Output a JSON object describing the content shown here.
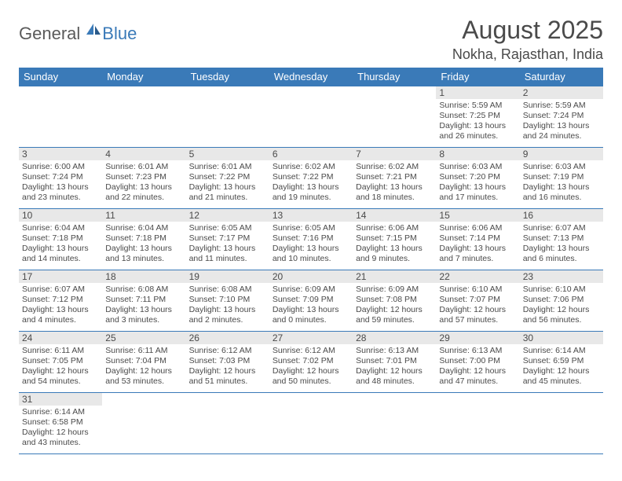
{
  "logo": {
    "general": "General",
    "blue": "Blue"
  },
  "title": "August 2025",
  "location": "Nokha, Rajasthan, India",
  "colors": {
    "header_bg": "#3a7ab8",
    "header_text": "#ffffff",
    "daynum_bg": "#e8e8e8",
    "border": "#3a7ab8",
    "text": "#4a4a4a",
    "background": "#ffffff"
  },
  "weekdays": [
    "Sunday",
    "Monday",
    "Tuesday",
    "Wednesday",
    "Thursday",
    "Friday",
    "Saturday"
  ],
  "weeks": [
    [
      null,
      null,
      null,
      null,
      null,
      {
        "day": "1",
        "sunrise": "Sunrise: 5:59 AM",
        "sunset": "Sunset: 7:25 PM",
        "daylight": "Daylight: 13 hours and 26 minutes."
      },
      {
        "day": "2",
        "sunrise": "Sunrise: 5:59 AM",
        "sunset": "Sunset: 7:24 PM",
        "daylight": "Daylight: 13 hours and 24 minutes."
      }
    ],
    [
      {
        "day": "3",
        "sunrise": "Sunrise: 6:00 AM",
        "sunset": "Sunset: 7:24 PM",
        "daylight": "Daylight: 13 hours and 23 minutes."
      },
      {
        "day": "4",
        "sunrise": "Sunrise: 6:01 AM",
        "sunset": "Sunset: 7:23 PM",
        "daylight": "Daylight: 13 hours and 22 minutes."
      },
      {
        "day": "5",
        "sunrise": "Sunrise: 6:01 AM",
        "sunset": "Sunset: 7:22 PM",
        "daylight": "Daylight: 13 hours and 21 minutes."
      },
      {
        "day": "6",
        "sunrise": "Sunrise: 6:02 AM",
        "sunset": "Sunset: 7:22 PM",
        "daylight": "Daylight: 13 hours and 19 minutes."
      },
      {
        "day": "7",
        "sunrise": "Sunrise: 6:02 AM",
        "sunset": "Sunset: 7:21 PM",
        "daylight": "Daylight: 13 hours and 18 minutes."
      },
      {
        "day": "8",
        "sunrise": "Sunrise: 6:03 AM",
        "sunset": "Sunset: 7:20 PM",
        "daylight": "Daylight: 13 hours and 17 minutes."
      },
      {
        "day": "9",
        "sunrise": "Sunrise: 6:03 AM",
        "sunset": "Sunset: 7:19 PM",
        "daylight": "Daylight: 13 hours and 16 minutes."
      }
    ],
    [
      {
        "day": "10",
        "sunrise": "Sunrise: 6:04 AM",
        "sunset": "Sunset: 7:18 PM",
        "daylight": "Daylight: 13 hours and 14 minutes."
      },
      {
        "day": "11",
        "sunrise": "Sunrise: 6:04 AM",
        "sunset": "Sunset: 7:18 PM",
        "daylight": "Daylight: 13 hours and 13 minutes."
      },
      {
        "day": "12",
        "sunrise": "Sunrise: 6:05 AM",
        "sunset": "Sunset: 7:17 PM",
        "daylight": "Daylight: 13 hours and 11 minutes."
      },
      {
        "day": "13",
        "sunrise": "Sunrise: 6:05 AM",
        "sunset": "Sunset: 7:16 PM",
        "daylight": "Daylight: 13 hours and 10 minutes."
      },
      {
        "day": "14",
        "sunrise": "Sunrise: 6:06 AM",
        "sunset": "Sunset: 7:15 PM",
        "daylight": "Daylight: 13 hours and 9 minutes."
      },
      {
        "day": "15",
        "sunrise": "Sunrise: 6:06 AM",
        "sunset": "Sunset: 7:14 PM",
        "daylight": "Daylight: 13 hours and 7 minutes."
      },
      {
        "day": "16",
        "sunrise": "Sunrise: 6:07 AM",
        "sunset": "Sunset: 7:13 PM",
        "daylight": "Daylight: 13 hours and 6 minutes."
      }
    ],
    [
      {
        "day": "17",
        "sunrise": "Sunrise: 6:07 AM",
        "sunset": "Sunset: 7:12 PM",
        "daylight": "Daylight: 13 hours and 4 minutes."
      },
      {
        "day": "18",
        "sunrise": "Sunrise: 6:08 AM",
        "sunset": "Sunset: 7:11 PM",
        "daylight": "Daylight: 13 hours and 3 minutes."
      },
      {
        "day": "19",
        "sunrise": "Sunrise: 6:08 AM",
        "sunset": "Sunset: 7:10 PM",
        "daylight": "Daylight: 13 hours and 2 minutes."
      },
      {
        "day": "20",
        "sunrise": "Sunrise: 6:09 AM",
        "sunset": "Sunset: 7:09 PM",
        "daylight": "Daylight: 13 hours and 0 minutes."
      },
      {
        "day": "21",
        "sunrise": "Sunrise: 6:09 AM",
        "sunset": "Sunset: 7:08 PM",
        "daylight": "Daylight: 12 hours and 59 minutes."
      },
      {
        "day": "22",
        "sunrise": "Sunrise: 6:10 AM",
        "sunset": "Sunset: 7:07 PM",
        "daylight": "Daylight: 12 hours and 57 minutes."
      },
      {
        "day": "23",
        "sunrise": "Sunrise: 6:10 AM",
        "sunset": "Sunset: 7:06 PM",
        "daylight": "Daylight: 12 hours and 56 minutes."
      }
    ],
    [
      {
        "day": "24",
        "sunrise": "Sunrise: 6:11 AM",
        "sunset": "Sunset: 7:05 PM",
        "daylight": "Daylight: 12 hours and 54 minutes."
      },
      {
        "day": "25",
        "sunrise": "Sunrise: 6:11 AM",
        "sunset": "Sunset: 7:04 PM",
        "daylight": "Daylight: 12 hours and 53 minutes."
      },
      {
        "day": "26",
        "sunrise": "Sunrise: 6:12 AM",
        "sunset": "Sunset: 7:03 PM",
        "daylight": "Daylight: 12 hours and 51 minutes."
      },
      {
        "day": "27",
        "sunrise": "Sunrise: 6:12 AM",
        "sunset": "Sunset: 7:02 PM",
        "daylight": "Daylight: 12 hours and 50 minutes."
      },
      {
        "day": "28",
        "sunrise": "Sunrise: 6:13 AM",
        "sunset": "Sunset: 7:01 PM",
        "daylight": "Daylight: 12 hours and 48 minutes."
      },
      {
        "day": "29",
        "sunrise": "Sunrise: 6:13 AM",
        "sunset": "Sunset: 7:00 PM",
        "daylight": "Daylight: 12 hours and 47 minutes."
      },
      {
        "day": "30",
        "sunrise": "Sunrise: 6:14 AM",
        "sunset": "Sunset: 6:59 PM",
        "daylight": "Daylight: 12 hours and 45 minutes."
      }
    ],
    [
      {
        "day": "31",
        "sunrise": "Sunrise: 6:14 AM",
        "sunset": "Sunset: 6:58 PM",
        "daylight": "Daylight: 12 hours and 43 minutes."
      },
      null,
      null,
      null,
      null,
      null,
      null
    ]
  ]
}
